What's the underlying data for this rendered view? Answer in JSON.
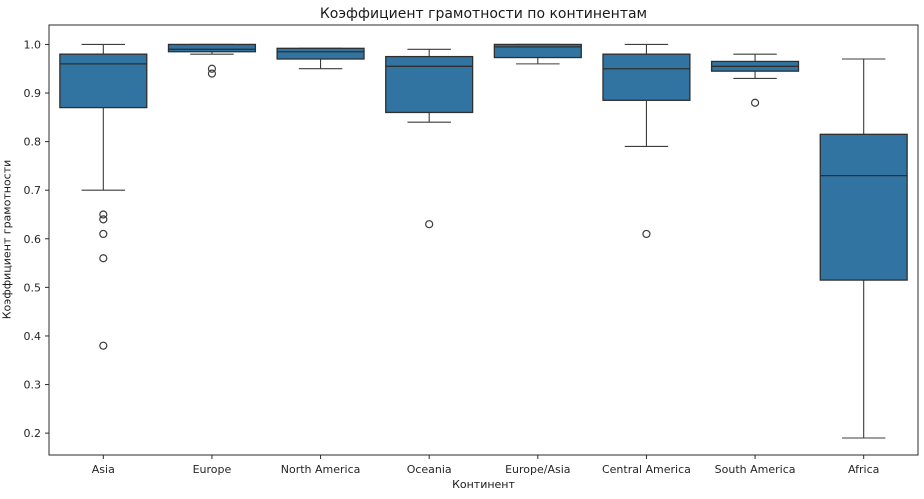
{
  "chart_data": {
    "type": "box",
    "title": "Коэффициент грамотности по континентам",
    "xlabel": "Континент",
    "ylabel": "Коэффициент грамотности",
    "categories": [
      "Asia",
      "Europe",
      "North America",
      "Oceania",
      "Europe/Asia",
      "Central America",
      "South America",
      "Africa"
    ],
    "series": [
      {
        "category": "Asia",
        "whisker_low": 0.7,
        "q1": 0.87,
        "median": 0.96,
        "q3": 0.98,
        "whisker_high": 1.0,
        "outliers": [
          0.65,
          0.64,
          0.61,
          0.56,
          0.38
        ]
      },
      {
        "category": "Europe",
        "whisker_low": 0.98,
        "q1": 0.985,
        "median": 0.99,
        "q3": 1.0,
        "whisker_high": 1.0,
        "outliers": [
          0.95,
          0.94
        ]
      },
      {
        "category": "North America",
        "whisker_low": 0.95,
        "q1": 0.97,
        "median": 0.985,
        "q3": 0.992,
        "whisker_high": 0.992,
        "outliers": []
      },
      {
        "category": "Oceania",
        "whisker_low": 0.84,
        "q1": 0.86,
        "median": 0.955,
        "q3": 0.975,
        "whisker_high": 0.99,
        "outliers": [
          0.63
        ]
      },
      {
        "category": "Europe/Asia",
        "whisker_low": 0.96,
        "q1": 0.973,
        "median": 0.995,
        "q3": 1.0,
        "whisker_high": 1.0,
        "outliers": []
      },
      {
        "category": "Central America",
        "whisker_low": 0.79,
        "q1": 0.885,
        "median": 0.95,
        "q3": 0.98,
        "whisker_high": 1.0,
        "outliers": [
          0.61
        ]
      },
      {
        "category": "South America",
        "whisker_low": 0.93,
        "q1": 0.945,
        "median": 0.955,
        "q3": 0.965,
        "whisker_high": 0.98,
        "outliers": [
          0.88
        ]
      },
      {
        "category": "Africa",
        "whisker_low": 0.19,
        "q1": 0.515,
        "median": 0.73,
        "q3": 0.815,
        "whisker_high": 0.97,
        "outliers": []
      }
    ],
    "yticks": [
      0.2,
      0.3,
      0.4,
      0.5,
      0.6,
      0.7,
      0.8,
      0.9,
      1.0
    ],
    "ylim": [
      0.155,
      1.04
    ],
    "grid": false,
    "legend": "none",
    "colors": {
      "box_fill": "#3274a1",
      "box_edge": "#2f2f2f",
      "whisker": "#3c3c3c",
      "spine": "#2b2b2b",
      "tick_label": "#262626",
      "background": "#ffffff"
    }
  }
}
